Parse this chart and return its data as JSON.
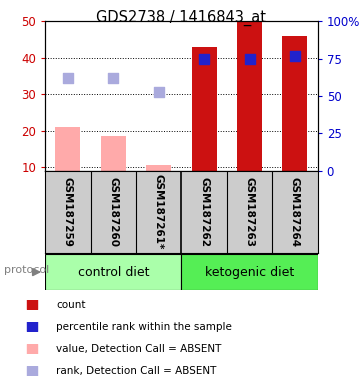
{
  "title": "GDS2738 / 1416843_at",
  "samples": [
    "GSM187259",
    "GSM187260",
    "GSM187261*",
    "GSM187262",
    "GSM187263",
    "GSM187264"
  ],
  "group_labels": [
    "control diet",
    "ketogenic diet"
  ],
  "group_colors": [
    "#aaffaa",
    "#55ee55"
  ],
  "bar_values": [
    21,
    18.5,
    10.5,
    43,
    50,
    46
  ],
  "bar_colors": [
    "#ffaaaa",
    "#ffaaaa",
    "#ffaaaa",
    "#cc1111",
    "#cc1111",
    "#cc1111"
  ],
  "dot_values": [
    34.5,
    34.5,
    30.5,
    39.5,
    39.5,
    40.5
  ],
  "dot_colors": [
    "#aaaadd",
    "#aaaadd",
    "#aaaadd",
    "#2222cc",
    "#2222cc",
    "#2222cc"
  ],
  "ylim_left": [
    9,
    50
  ],
  "ylim_right": [
    0,
    100
  ],
  "yticks_left": [
    10,
    20,
    30,
    40,
    50
  ],
  "yticks_right": [
    0,
    25,
    50,
    75,
    100
  ],
  "ylabel_left_color": "#cc0000",
  "ylabel_right_color": "#0000cc",
  "bar_width": 0.55,
  "dot_size": 55,
  "legend_items": [
    {
      "label": "count",
      "color": "#cc1111"
    },
    {
      "label": "percentile rank within the sample",
      "color": "#2222cc"
    },
    {
      "label": "value, Detection Call = ABSENT",
      "color": "#ffaaaa"
    },
    {
      "label": "rank, Detection Call = ABSENT",
      "color": "#aaaadd"
    }
  ],
  "protocol_label": "protocol",
  "right_ytick_labels": [
    "0",
    "25",
    "50",
    "75",
    "100%"
  ],
  "sample_bg_color": "#cccccc",
  "fig_w": 3.61,
  "fig_h": 3.84,
  "dpi": 100
}
